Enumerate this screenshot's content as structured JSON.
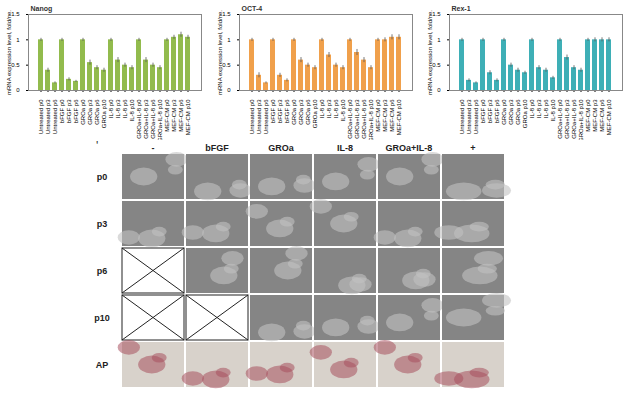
{
  "chart_data": [
    {
      "type": "bar",
      "title": "Nanog",
      "y_label": "mRNA expression level, fold/ne.",
      "categories": [
        "Untreated p0",
        "Untreated p3",
        "Untreated p6",
        "bFGF p0",
        "bFGF p3",
        "bFGF p6",
        "GROa p0",
        "GROa p3",
        "GROa p6",
        "GROa p10",
        "IL-8 p0",
        "IL-8 p3",
        "IL-8 p6",
        "IL-8 p10",
        "GROa+IL-8 p0",
        "GROa+IL-8 p3",
        "GROa+IL-8 p6",
        "GROa+IL-8 p10",
        "MEF-CM p0",
        "MEF-CM p3",
        "MEF-CM p6",
        "MEF-CM p10"
      ],
      "values": [
        1,
        0.4,
        0.15,
        1,
        0.22,
        0.18,
        1,
        0.55,
        0.45,
        0.4,
        1,
        0.6,
        0.5,
        0.45,
        1,
        0.6,
        0.5,
        0.45,
        1,
        1.05,
        1.1,
        1.05
      ],
      "errors": [
        0.03,
        0.04,
        0.02,
        0.03,
        0.03,
        0.02,
        0.03,
        0.05,
        0.04,
        0.04,
        0.03,
        0.05,
        0.04,
        0.04,
        0.03,
        0.05,
        0.04,
        0.04,
        0.03,
        0.04,
        0.05,
        0.04
      ],
      "color": "#92bb4d",
      "ylim": [
        0,
        1.5
      ],
      "yticks": [
        0,
        0.5,
        1,
        1.5
      ]
    },
    {
      "type": "bar",
      "title": "OCT-4",
      "y_label": "mRNA expression level, fold/ne.",
      "categories": [
        "Untreated p0",
        "Untreated p3",
        "Untreated p6",
        "bFGF p0",
        "bFGF p3",
        "bFGF p6",
        "GROa p0",
        "GROa p3",
        "GROa p6",
        "GROa p10",
        "IL-8 p0",
        "IL-8 p3",
        "IL-8 p6",
        "IL-8 p10",
        "GROa+IL-8 p0",
        "GROa+IL-8 p3",
        "GROa+IL-8 p6",
        "GROa+IL-8 p10",
        "MEF-CM p0",
        "MEF-CM p3",
        "MEF-CM p6",
        "MEF-CM p10"
      ],
      "values": [
        1,
        0.3,
        0.15,
        1,
        0.3,
        0.2,
        1,
        0.6,
        0.5,
        0.45,
        1,
        0.7,
        0.5,
        0.45,
        1,
        0.75,
        0.6,
        0.45,
        1,
        1.0,
        1.05,
        1.05
      ],
      "errors": [
        0.03,
        0.05,
        0.02,
        0.03,
        0.04,
        0.03,
        0.03,
        0.05,
        0.04,
        0.04,
        0.03,
        0.05,
        0.04,
        0.04,
        0.03,
        0.06,
        0.05,
        0.04,
        0.03,
        0.04,
        0.05,
        0.05
      ],
      "color": "#f0a04b",
      "ylim": [
        0,
        1.5
      ],
      "yticks": [
        0,
        0.5,
        1,
        1.5
      ]
    },
    {
      "type": "bar",
      "title": "Rex-1",
      "y_label": "mRNA expression level, fold/ne.",
      "categories": [
        "Untreated p0",
        "Untreated p3",
        "Untreated p6",
        "bFGF p0",
        "bFGF p3",
        "bFGF p6",
        "GROa p0",
        "GROa p3",
        "GROa p6",
        "GROa p10",
        "IL-8 p0",
        "IL-8 p3",
        "IL-8 p6",
        "IL-8 p10",
        "GROa+IL-8 p0",
        "GROa+IL-8 p3",
        "GROa+IL-8 p6",
        "GROa+IL-8 p10",
        "MEF-CM p0",
        "MEF-CM p3",
        "MEF-CM p6",
        "MEF-CM p10"
      ],
      "values": [
        1,
        0.2,
        0.15,
        1,
        0.35,
        0.2,
        1,
        0.5,
        0.4,
        0.35,
        1,
        0.45,
        0.4,
        0.25,
        1,
        0.65,
        0.45,
        0.4,
        1,
        1,
        1,
        1
      ],
      "errors": [
        0.03,
        0.03,
        0.02,
        0.03,
        0.04,
        0.03,
        0.03,
        0.04,
        0.04,
        0.03,
        0.03,
        0.04,
        0.04,
        0.03,
        0.03,
        0.05,
        0.04,
        0.04,
        0.03,
        0.04,
        0.04,
        0.04
      ],
      "color": "#3eafb6",
      "ylim": [
        0,
        1.5
      ],
      "yticks": [
        0,
        0.5,
        1,
        1.5
      ]
    }
  ],
  "image_grid": {
    "corner_mark": "'",
    "columns": [
      "-",
      "bFGF",
      "GROa",
      "IL-8",
      "GROa+IL-8",
      "+"
    ],
    "rows": [
      {
        "label": "p0",
        "missing": []
      },
      {
        "label": "p3",
        "missing": []
      },
      {
        "label": "p6",
        "missing": [
          "-"
        ]
      },
      {
        "label": "p10",
        "missing": [
          "-",
          "bFGF"
        ]
      },
      {
        "label": "AP",
        "missing": []
      }
    ]
  }
}
